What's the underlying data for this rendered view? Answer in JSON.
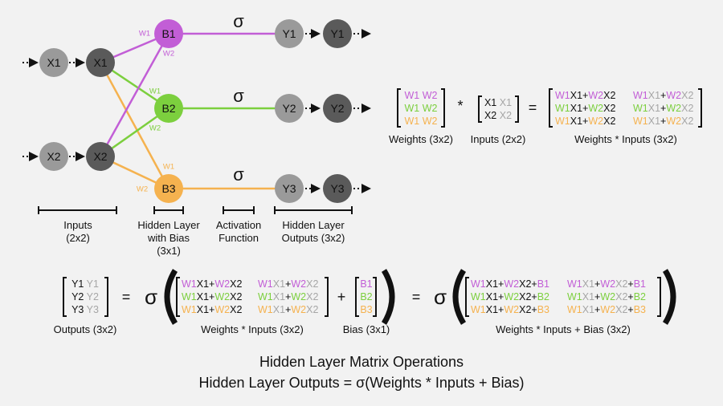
{
  "colors": {
    "w1": "#c25ed6",
    "w2": "#7ccf3e",
    "w3": "#f5b24f",
    "input_node": "#9a9a9a",
    "dark_node": "#5a5a5a",
    "text": "#111111",
    "faded": "#a6a6a6"
  },
  "network": {
    "inputs": [
      "X1",
      "X2"
    ],
    "input_copies": [
      "X1",
      "X2"
    ],
    "hidden": [
      "B1",
      "B2",
      "B3"
    ],
    "outputs": [
      "Y1",
      "Y2",
      "Y3"
    ],
    "output_copies": [
      "Y1",
      "Y2",
      "Y3"
    ],
    "sigma": "σ",
    "w1": "W1",
    "w2": "W2"
  },
  "brackets": {
    "inputs": {
      "line1": "Inputs",
      "line2": "(2x2)"
    },
    "hidden": {
      "line1": "Hidden Layer",
      "line2": "with Bias",
      "line3": "(3x1)"
    },
    "activation": {
      "line1": "Activation",
      "line2": "Function"
    },
    "outputs": {
      "line1": "Hidden Layer",
      "line2": "Outputs (3x2)"
    }
  },
  "eq1": {
    "mult": "*",
    "equals": "=",
    "weights_caption": "Weights (3x2)",
    "inputs_caption": "Inputs (2x2)",
    "product_caption": "Weights * Inputs (3x2)",
    "input_rows": [
      [
        "X1",
        "X1"
      ],
      [
        "X2",
        "X2"
      ]
    ]
  },
  "eq2": {
    "outputs_rows": [
      [
        "Y1",
        "Y1"
      ],
      [
        "Y2",
        "Y2"
      ],
      [
        "Y3",
        "Y3"
      ]
    ],
    "outputs_caption": "Outputs (3x2)",
    "equals": "=",
    "sigma": "σ",
    "plus": "+",
    "product_caption": "Weights * Inputs (3x2)",
    "bias_caption": "Bias (3x1)",
    "result_caption": "Weights * Inputs + Bias (3x2)",
    "bias": [
      "B1",
      "B2",
      "B3"
    ],
    "plus_sign": "+"
  },
  "footer": {
    "title": "Hidden Layer Matrix Operations",
    "formula": "Hidden Layer Outputs = σ(Weights * Inputs + Bias)"
  }
}
